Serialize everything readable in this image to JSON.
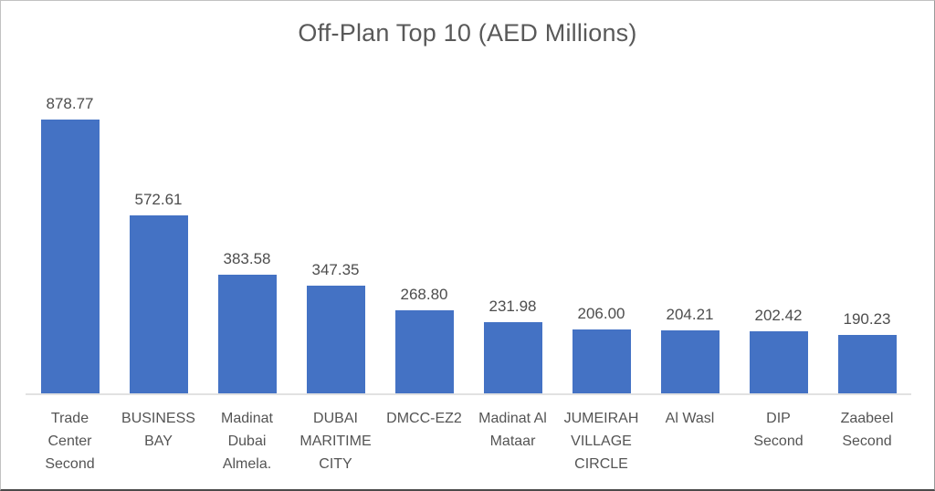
{
  "chart_data": {
    "type": "bar",
    "title": "Off-Plan Top 10 (AED Millions)",
    "categories": [
      "Trade Center Second",
      "BUSINESS BAY",
      "Madinat Dubai Almela.",
      "DUBAI MARITIME CITY",
      "DMCC-EZ2",
      "Madinat Al Mataar",
      "JUMEIRAH VILLAGE CIRCLE",
      "Al Wasl",
      "DIP Second",
      "Zaabeel Second"
    ],
    "category_label_lines": [
      [
        "Trade",
        "Center",
        "Second"
      ],
      [
        "BUSINESS",
        "BAY"
      ],
      [
        "Madinat",
        "Dubai",
        "Almela."
      ],
      [
        "DUBAI",
        "MARITIME",
        "CITY"
      ],
      [
        "DMCC-EZ2"
      ],
      [
        "Madinat Al",
        "Mataar"
      ],
      [
        "JUMEIRAH",
        "VILLAGE",
        "CIRCLE"
      ],
      [
        "Al Wasl"
      ],
      [
        "DIP",
        "Second"
      ],
      [
        "Zaabeel",
        "Second"
      ]
    ],
    "values": [
      878.77,
      572.61,
      383.58,
      347.35,
      268.8,
      231.98,
      206.0,
      204.21,
      202.42,
      190.23
    ],
    "value_labels": [
      "878.77",
      "572.61",
      "383.58",
      "347.35",
      "268.80",
      "231.98",
      "206.00",
      "204.21",
      "202.42",
      "190.23"
    ],
    "xlabel": "",
    "ylabel": "",
    "ylim": [
      0,
      900
    ],
    "grid": false,
    "legend": false,
    "bar_color": "#4472C4",
    "title_color": "#595959",
    "data_label_color": "#4d4d4d",
    "category_label_color": "#545454",
    "axis_line_color": "#e2e2e2"
  }
}
